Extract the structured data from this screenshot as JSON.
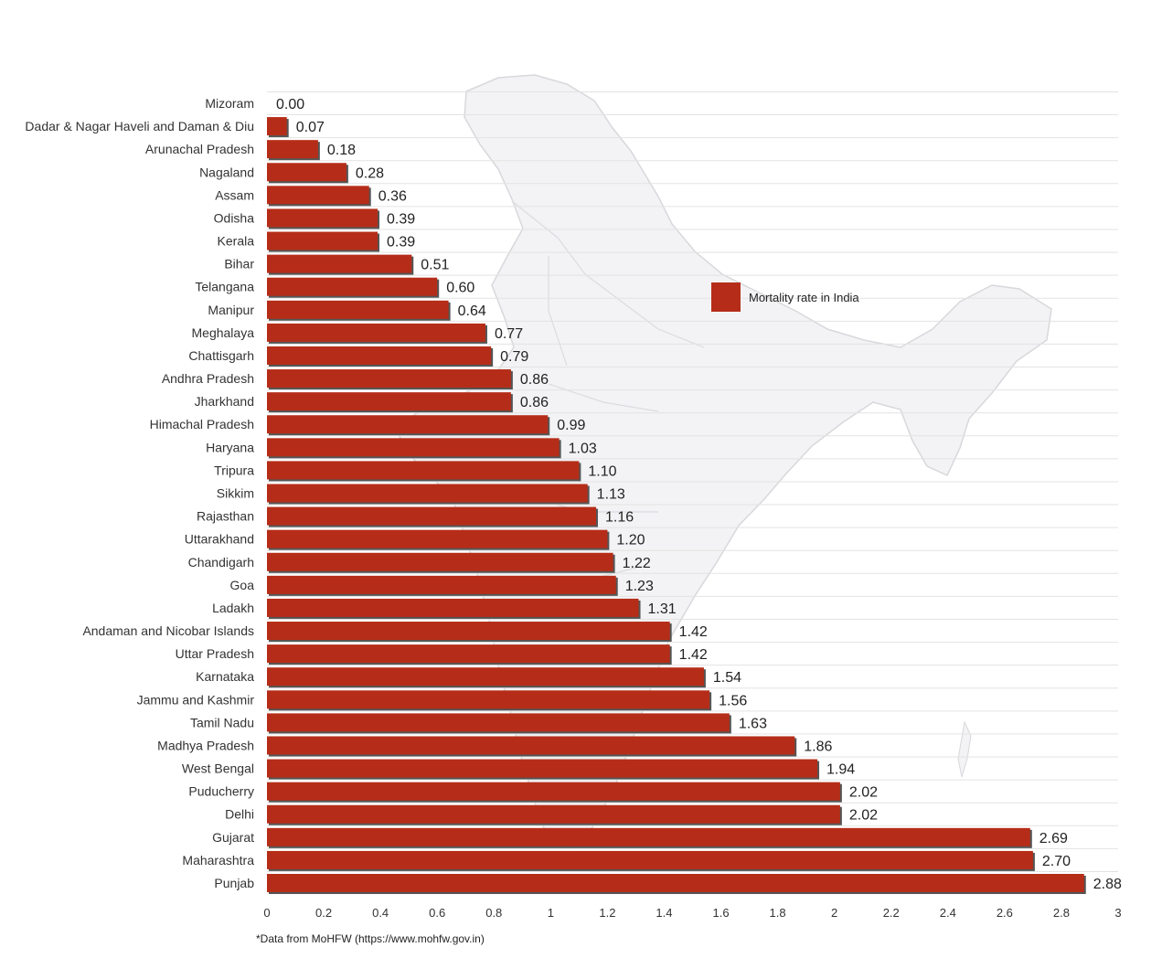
{
  "chart_data": {
    "type": "bar",
    "orientation": "horizontal",
    "categories": [
      "Mizoram",
      "Dadar & Nagar Haveli and Daman & Diu",
      "Arunachal Pradesh",
      "Nagaland",
      "Assam",
      "Odisha",
      "Kerala",
      "Bihar",
      "Telangana",
      "Manipur",
      "Meghalaya",
      "Chattisgarh",
      "Andhra Pradesh",
      "Jharkhand",
      "Himachal Pradesh",
      "Haryana",
      "Tripura",
      "Sikkim",
      "Rajasthan",
      "Uttarakhand",
      "Chandigarh",
      "Goa",
      "Ladakh",
      "Andaman and Nicobar Islands",
      "Uttar Pradesh",
      "Karnataka",
      "Jammu and Kashmir",
      "Tamil Nadu",
      "Madhya Pradesh",
      "West Bengal",
      "Puducherry",
      "Delhi",
      "Gujarat",
      "Maharashtra",
      "Punjab"
    ],
    "series": [
      {
        "name": "Mortality rate in India",
        "values": [
          0.0,
          0.07,
          0.18,
          0.28,
          0.36,
          0.39,
          0.39,
          0.51,
          0.6,
          0.64,
          0.77,
          0.79,
          0.86,
          0.86,
          0.99,
          1.03,
          1.1,
          1.13,
          1.16,
          1.2,
          1.22,
          1.23,
          1.31,
          1.42,
          1.42,
          1.54,
          1.56,
          1.63,
          1.86,
          1.94,
          2.02,
          2.02,
          2.69,
          2.7,
          2.88
        ],
        "labels": [
          "0.00",
          "0.07",
          "0.18",
          "0.28",
          "0.36",
          "0.39",
          "0.39",
          "0.51",
          "0.60",
          "0.64",
          "0.77",
          "0.79",
          "0.86",
          "0.86",
          "0.99",
          "1.03",
          "1.10",
          "1.13",
          "1.16",
          "1.20",
          "1.22",
          "1.23",
          "1.31",
          "1.42",
          "1.42",
          "1.54",
          "1.56",
          "1.63",
          "1.86",
          "1.94",
          "2.02",
          "2.02",
          "2.69",
          "2.70",
          "2.88"
        ]
      }
    ],
    "xticks": [
      "0",
      "0.2",
      "0.4",
      "0.6",
      "0.8",
      "1",
      "1.2",
      "1.4",
      "1.6",
      "1.8",
      "2",
      "2.2",
      "2.4",
      "2.6",
      "2.8",
      "3"
    ],
    "xlim": [
      0,
      3
    ],
    "grid": true,
    "legend": "center-right",
    "colors": {
      "bar": "#b52d18",
      "bar_shadow": "#555555",
      "grid": "#e3e3e3",
      "map": "#f3f3f5",
      "map_border": "#d8d8dc"
    },
    "source_note": "*Data from MoHFW (https://www.mohfw.gov.in)"
  }
}
